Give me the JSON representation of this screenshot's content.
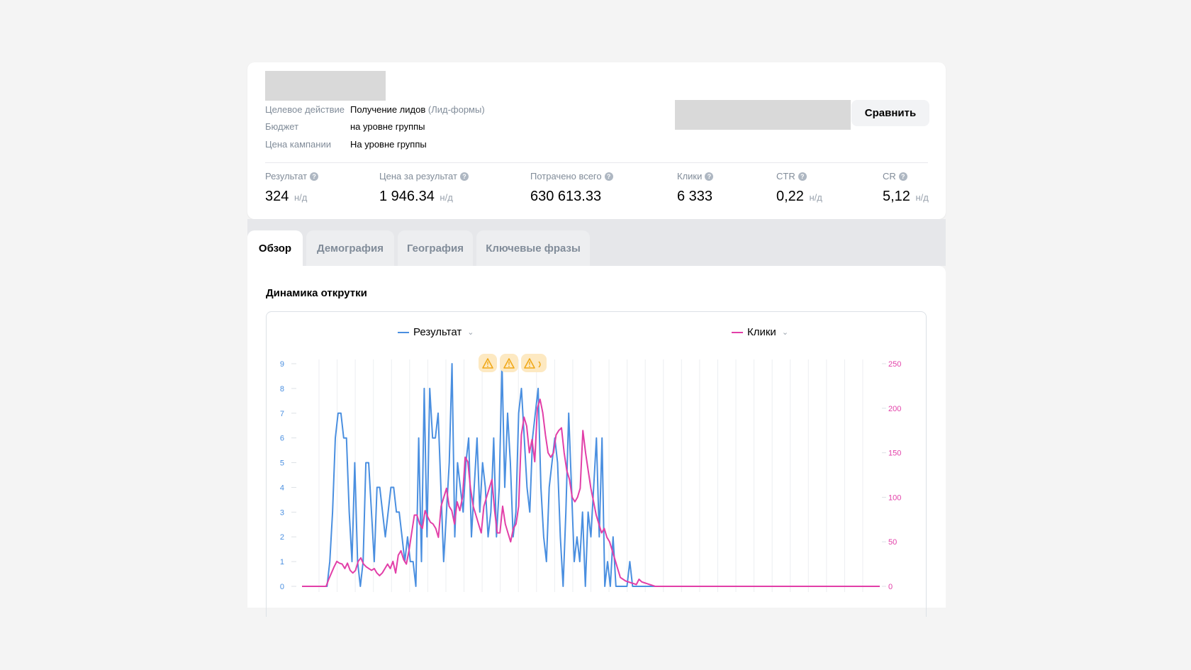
{
  "campaign": {
    "meta": [
      {
        "label": "Целевое действие",
        "value": "Получение лидов",
        "value_muted": "(Лид-формы)"
      },
      {
        "label": "Бюджет",
        "value": "на уровне группы",
        "value_muted": ""
      },
      {
        "label": "Цена кампании",
        "value": "На уровне группы",
        "value_muted": ""
      }
    ],
    "compare_label": "Сравнить"
  },
  "stats": [
    {
      "label": "Результат",
      "value": "324",
      "suffix": "н/д"
    },
    {
      "label": "Цена за результат",
      "value": "1 946.34",
      "suffix": "н/д"
    },
    {
      "label": "Потрачено всего",
      "value": "630 613.33",
      "suffix": ""
    },
    {
      "label": "Клики",
      "value": "6 333",
      "suffix": ""
    },
    {
      "label": "CTR",
      "value": "0,22",
      "suffix": "н/д"
    },
    {
      "label": "CR",
      "value": "5,12",
      "suffix": "н/д"
    }
  ],
  "tabs": [
    {
      "label": "Обзор",
      "active": true
    },
    {
      "label": "Демография",
      "active": false
    },
    {
      "label": "География",
      "active": false
    },
    {
      "label": "Ключевые фразы",
      "active": false
    }
  ],
  "section_title": "Динамика открутки",
  "colors": {
    "result": "#4a8fe0",
    "clicks": "#e23fa8",
    "warning": "#f0a818",
    "warning_bg": "#fde9c2"
  },
  "chart_data": {
    "type": "line",
    "series": [
      {
        "name": "Результат",
        "axis": "left",
        "values": [
          0,
          0,
          0,
          0,
          0,
          0,
          0,
          0,
          0,
          0,
          1,
          3,
          6,
          7,
          7,
          6,
          6,
          3,
          1,
          5,
          1,
          0,
          1,
          5,
          5,
          3,
          1,
          4,
          4,
          3,
          2,
          3,
          4,
          4,
          3,
          3,
          2,
          1,
          2,
          1,
          1,
          0,
          6,
          1,
          8,
          2,
          8,
          6,
          6,
          7,
          4,
          1,
          3,
          5,
          9,
          2,
          5,
          4,
          3,
          5,
          6,
          2,
          4,
          6,
          3,
          5,
          4,
          2,
          3,
          6,
          2,
          4,
          9,
          4,
          7,
          5,
          2,
          3,
          7,
          8,
          6,
          4,
          3,
          6,
          7,
          8,
          4,
          2,
          1,
          4,
          5,
          6,
          5,
          2,
          0,
          3,
          7,
          4,
          1,
          2,
          1,
          3,
          0,
          3,
          2,
          4,
          6,
          2,
          6,
          0,
          1,
          0,
          2,
          0,
          0,
          0,
          0,
          0,
          1,
          0,
          0,
          0,
          0,
          0,
          0,
          0,
          0,
          0,
          0,
          0,
          0,
          0,
          0,
          0,
          0,
          0,
          0,
          0,
          0,
          0,
          0,
          0,
          0,
          0,
          0,
          0,
          0,
          0,
          0,
          0,
          0,
          0,
          0,
          0,
          0,
          0,
          0,
          0,
          0,
          0,
          0,
          0,
          0,
          0,
          0,
          0,
          0,
          0,
          0,
          0,
          0,
          0,
          0,
          0,
          0,
          0,
          0,
          0,
          0,
          0,
          0,
          0,
          0,
          0,
          0,
          0,
          0,
          0,
          0,
          0,
          0,
          0,
          0,
          0,
          0,
          0,
          0,
          0,
          0,
          0,
          0,
          0,
          0,
          0,
          0,
          0,
          0,
          0,
          0
        ]
      },
      {
        "name": "Клики",
        "axis": "right",
        "values": [
          0,
          0,
          0,
          0,
          0,
          0,
          0,
          0,
          0,
          0,
          8,
          15,
          22,
          28,
          26,
          25,
          20,
          26,
          18,
          15,
          18,
          28,
          32,
          25,
          22,
          20,
          18,
          20,
          15,
          12,
          15,
          20,
          25,
          20,
          28,
          15,
          35,
          40,
          30,
          25,
          40,
          60,
          80,
          80,
          70,
          65,
          85,
          78,
          72,
          70,
          65,
          55,
          90,
          100,
          110,
          90,
          85,
          70,
          95,
          85,
          100,
          145,
          140,
          110,
          90,
          80,
          70,
          60,
          90,
          100,
          110,
          120,
          85,
          60,
          60,
          90,
          70,
          60,
          50,
          65,
          70,
          90,
          170,
          190,
          180,
          150,
          165,
          140,
          200,
          210,
          195,
          170,
          150,
          145,
          150,
          170,
          175,
          178,
          150,
          130,
          120,
          100,
          95,
          100,
          110,
          175,
          150,
          130,
          110,
          95,
          80,
          70,
          60,
          65,
          55,
          50,
          40,
          30,
          20,
          10,
          8,
          6,
          5,
          4,
          3,
          2,
          8,
          5,
          4,
          3,
          2,
          1,
          0,
          0,
          0,
          0,
          0,
          0,
          0,
          0,
          0,
          0,
          0,
          0,
          0,
          0,
          0,
          0,
          0,
          0,
          0,
          0,
          0,
          0,
          0,
          0,
          0,
          0,
          0,
          0,
          0,
          0,
          0,
          0,
          0,
          0,
          0,
          0,
          0,
          0,
          0,
          0,
          0,
          0,
          0,
          0,
          0,
          0,
          0,
          0,
          0,
          0,
          0,
          0,
          0,
          0,
          0,
          0,
          0,
          0,
          0,
          0,
          0,
          0,
          0,
          0,
          0,
          0,
          0,
          0,
          0,
          0,
          0,
          0,
          0,
          0,
          0,
          0,
          0,
          0,
          0,
          0,
          0,
          0,
          0,
          0,
          0
        ]
      }
    ],
    "y_left": {
      "ticks": [
        0,
        1,
        2,
        3,
        4,
        5,
        6,
        7,
        8,
        9
      ],
      "range": [
        0,
        9
      ]
    },
    "y_right": {
      "ticks": [
        0,
        50,
        100,
        150,
        200,
        250
      ],
      "range": [
        0,
        250
      ]
    },
    "vertical_gridlines": 31,
    "warnings": [
      {
        "icon": "warning-triangle-icon",
        "label": ""
      },
      {
        "icon": "warning-triangle-icon",
        "label": ""
      },
      {
        "icon": "warning-triangle-icon",
        "label": ""
      }
    ]
  }
}
